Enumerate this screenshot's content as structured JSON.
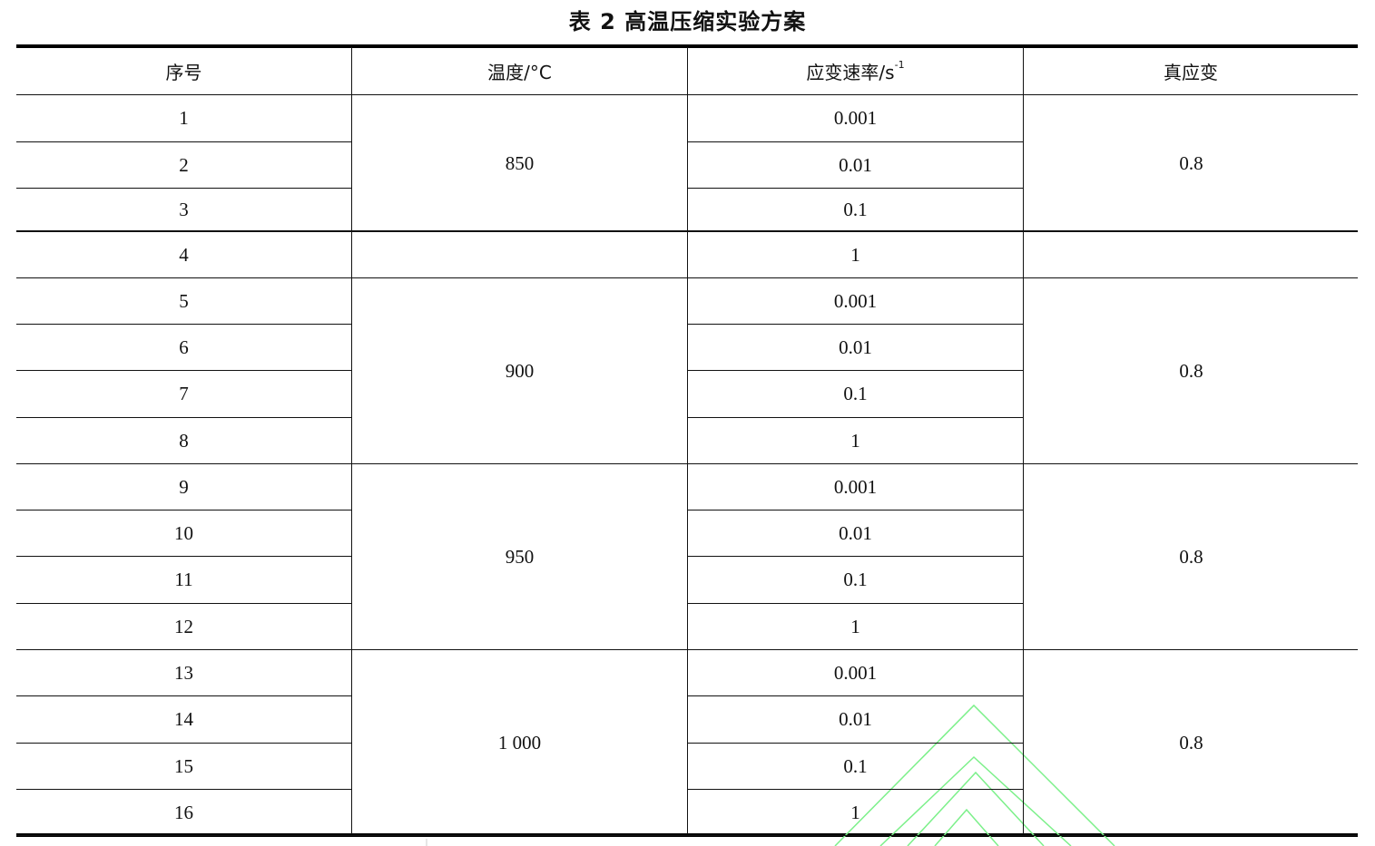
{
  "title": "表 2  高温压缩实验方案",
  "headers": {
    "index": "序号",
    "temperature": "温度/°C",
    "strain_rate": "应变速率/s",
    "strain_rate_sup": "-1",
    "true_strain": "真应变"
  },
  "rows": [
    {
      "index": "1",
      "strain_rate": "0.001"
    },
    {
      "index": "2",
      "strain_rate": "0.01"
    },
    {
      "index": "3",
      "strain_rate": "0.1"
    },
    {
      "index": "4",
      "strain_rate": "1"
    },
    {
      "index": "5",
      "strain_rate": "0.001"
    },
    {
      "index": "6",
      "strain_rate": "0.01"
    },
    {
      "index": "7",
      "strain_rate": "0.1"
    },
    {
      "index": "8",
      "strain_rate": "1"
    },
    {
      "index": "9",
      "strain_rate": "0.001"
    },
    {
      "index": "10",
      "strain_rate": "0.01"
    },
    {
      "index": "11",
      "strain_rate": "0.1"
    },
    {
      "index": "12",
      "strain_rate": "1"
    },
    {
      "index": "13",
      "strain_rate": "0.001"
    },
    {
      "index": "14",
      "strain_rate": "0.01"
    },
    {
      "index": "15",
      "strain_rate": "0.1"
    },
    {
      "index": "16",
      "strain_rate": "1"
    }
  ],
  "groups": [
    {
      "rows": [
        1,
        3
      ],
      "temperature": "850",
      "true_strain": "0.8"
    },
    {
      "rows": [
        4,
        4
      ],
      "temperature": "",
      "true_strain": ""
    },
    {
      "rows": [
        5,
        8
      ],
      "temperature": "900",
      "true_strain": "0.8"
    },
    {
      "rows": [
        9,
        12
      ],
      "temperature": "950",
      "true_strain": "0.8"
    },
    {
      "rows": [
        13,
        16
      ],
      "temperature": "1 000",
      "true_strain": "0.8"
    }
  ],
  "watermark_color": "#7cf08a"
}
